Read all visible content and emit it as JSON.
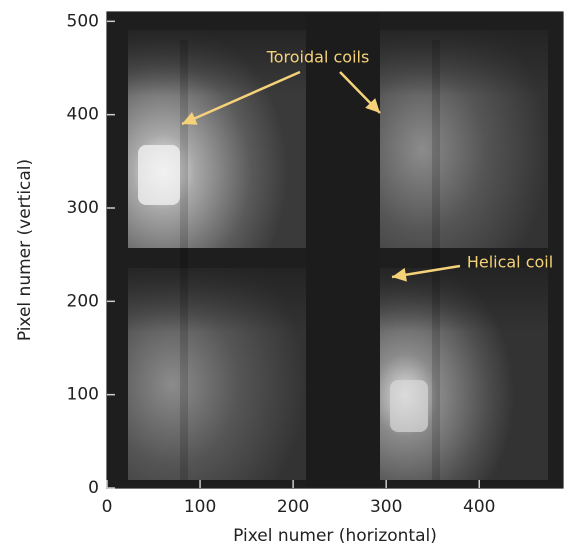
{
  "chart_data": {
    "type": "image",
    "xlabel": "Pixel numer (horizontal)",
    "ylabel": "Pixel numer (vertical)",
    "xlim": [
      0,
      490
    ],
    "ylim": [
      0,
      510
    ],
    "xticks": [
      0,
      100,
      200,
      300,
      400
    ],
    "yticks": [
      0,
      100,
      200,
      300,
      400,
      500
    ],
    "annotations": [
      "Toroidal coils",
      "Helical coil"
    ],
    "annotation_color": "#f5d27a"
  }
}
